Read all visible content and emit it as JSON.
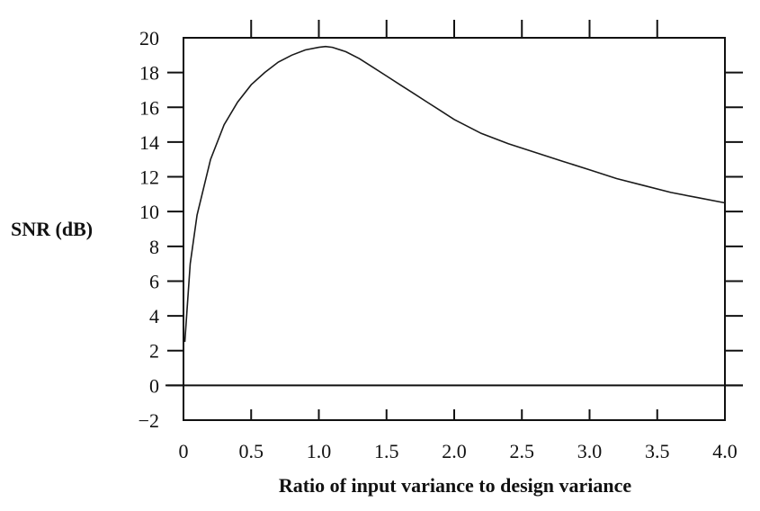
{
  "chart_data": {
    "type": "line",
    "title": "",
    "xlabel": "Ratio of input variance to design variance",
    "ylabel": "SNR (dB)",
    "xlim": [
      0,
      4.0
    ],
    "ylim": [
      -2,
      20
    ],
    "x_ticks": [
      "0",
      "0.5",
      "1.0",
      "1.5",
      "2.0",
      "2.5",
      "3.0",
      "3.5",
      "4.0"
    ],
    "y_ticks": [
      "−2",
      "0",
      "2",
      "4",
      "6",
      "8",
      "10",
      "12",
      "14",
      "16",
      "18",
      "20"
    ],
    "x_tick_values": [
      0,
      0.5,
      1.0,
      1.5,
      2.0,
      2.5,
      3.0,
      3.5,
      4.0
    ],
    "y_tick_values": [
      -2,
      0,
      2,
      4,
      6,
      8,
      10,
      12,
      14,
      16,
      18,
      20
    ],
    "grid": false,
    "reference_line_y": 0,
    "line_color": "#1a1a1a",
    "series": [
      {
        "x": [
          0.01,
          0.05,
          0.1,
          0.2,
          0.3,
          0.4,
          0.5,
          0.6,
          0.7,
          0.8,
          0.9,
          1.0,
          1.05,
          1.1,
          1.2,
          1.3,
          1.4,
          1.5,
          1.6,
          1.7,
          1.8,
          1.9,
          2.0,
          2.2,
          2.4,
          2.6,
          2.8,
          3.0,
          3.2,
          3.4,
          3.6,
          3.8,
          4.0
        ],
        "y": [
          2.5,
          7.0,
          9.8,
          13.0,
          15.0,
          16.3,
          17.3,
          18.0,
          18.6,
          19.0,
          19.3,
          19.45,
          19.5,
          19.45,
          19.2,
          18.8,
          18.3,
          17.8,
          17.3,
          16.8,
          16.3,
          15.8,
          15.3,
          14.5,
          13.9,
          13.4,
          12.9,
          12.4,
          11.9,
          11.5,
          11.1,
          10.8,
          10.5
        ]
      }
    ]
  }
}
